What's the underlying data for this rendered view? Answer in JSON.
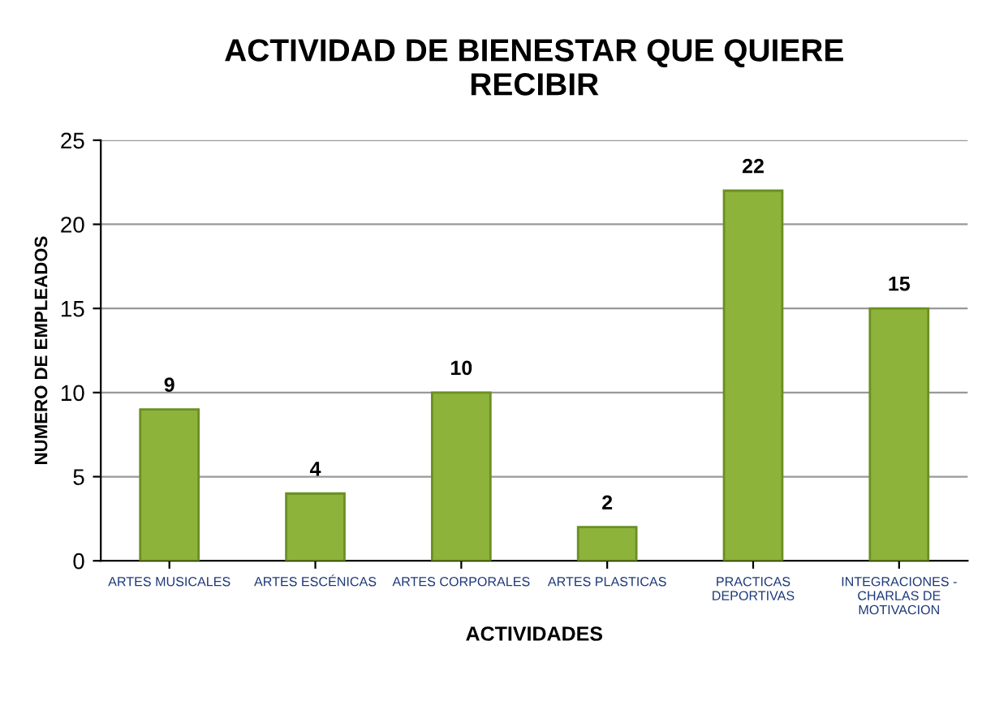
{
  "chart_data": {
    "type": "bar",
    "title": "ACTIVIDAD DE BIENESTAR QUE QUIERE\nRECIBIR",
    "xlabel": "ACTIVIDADES",
    "ylabel": "NUMERO DE EMPLEADOS",
    "categories": [
      "ARTES MUSICALES",
      "ARTES ESCÉNICAS",
      "ARTES CORPORALES",
      "ARTES PLASTICAS",
      "PRACTICAS\nDEPORTIVAS",
      "INTEGRACIONES -\nCHARLAS DE\nMOTIVACION"
    ],
    "values": [
      9,
      4,
      10,
      2,
      22,
      15
    ],
    "color": "#8db33a",
    "ylim": [
      0,
      25
    ],
    "yticks": [
      0,
      5,
      10,
      15,
      20,
      25
    ],
    "grid": "y",
    "data_labels": true
  }
}
